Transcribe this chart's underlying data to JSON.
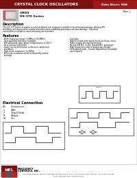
{
  "title_text": "CRYSTAL CLOCK OSCILLATORS",
  "data_sheet_label": "Data Sheet: HSA",
  "rev_text": "Rev. J",
  "product_code": "CMOS",
  "series_text": "HS-370 Series",
  "description_title": "Description",
  "desc_lines": [
    "The HS-370 Series of quartz crystal oscillators are resistance welded in an all metal package, offering RFI",
    "shielding, are designed to survive standard wave-soldering operations without damage.  Insulated",
    "connectors to enhance sound shunting are standard."
  ],
  "features_title": "Features",
  "features_left": [
    "- Wide frequency range (1.0MHz to 50.0MHz)",
    "- User specified tolerance available",
    "- Will withstand vapor phase temperatures of 260°C",
    "  for 4 minutes maximum",
    "- Space saving alternative to discrete component",
    "  oscillators",
    "- High shock resistance, to 3000g",
    "- All metal, resistance-weld, hermetically sealed",
    "  package"
  ],
  "features_right": [
    "- Low Jitter",
    "- High-Q Crystal selectively tuned oscillator circuit",
    "- Power supply decoupling internal",
    "- No internal PLL, in-site (parallel/PL), prototype",
    "- High frequencies due to proprietary design",
    "- Gold plated leads - Custom departments available",
    "  upon request"
  ],
  "electrical_title": "Electrical Connection",
  "pin_header": [
    "Pin",
    "Connection"
  ],
  "pins": [
    [
      "1",
      "GND"
    ],
    [
      "7",
      "Chip-E Enab"
    ],
    [
      "8",
      "Output"
    ],
    [
      "14",
      "Vcc"
    ]
  ],
  "footer_address": "177 Bower Road, P.O. Box 457, Burlington, WI 53105-0457, U.S.A.   Ph in Phone: (262) 763-3591   FAX: (262) 763-7588",
  "footer_address2": "Email: nel@nelfc.com   www.nelfc.com",
  "header_bg": "#7a1010",
  "header_right_bg": "#a01818",
  "page_bg": "#e8e8e8",
  "body_bg": "#ffffff",
  "nel_logo_bg": "#7a1010"
}
